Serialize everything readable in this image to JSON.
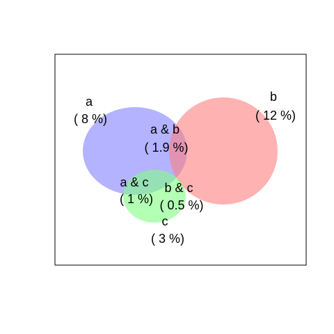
{
  "colors": {
    "background": "#ffffff",
    "frame": "#000000",
    "set_a": "#8080ff",
    "set_b": "#ff7f7f",
    "set_c": "#80ff80"
  },
  "sets": [
    {
      "key": "a",
      "name": "a",
      "percent_text": "( 8 %)",
      "color": "#8080ff"
    },
    {
      "key": "b",
      "name": "b",
      "percent_text": "( 12 %)",
      "color": "#ff7f7f"
    },
    {
      "key": "c",
      "name": "c",
      "percent_text": "( 3 %)",
      "color": "#80ff80"
    }
  ],
  "intersections": [
    {
      "key": "ab",
      "name": "a & b",
      "percent_text": "( 1.9 %)"
    },
    {
      "key": "ac",
      "name": "a & c",
      "percent_text": "( 1 %)"
    },
    {
      "key": "bc",
      "name": "b & c",
      "percent_text": "( 0.5 %)"
    }
  ]
}
